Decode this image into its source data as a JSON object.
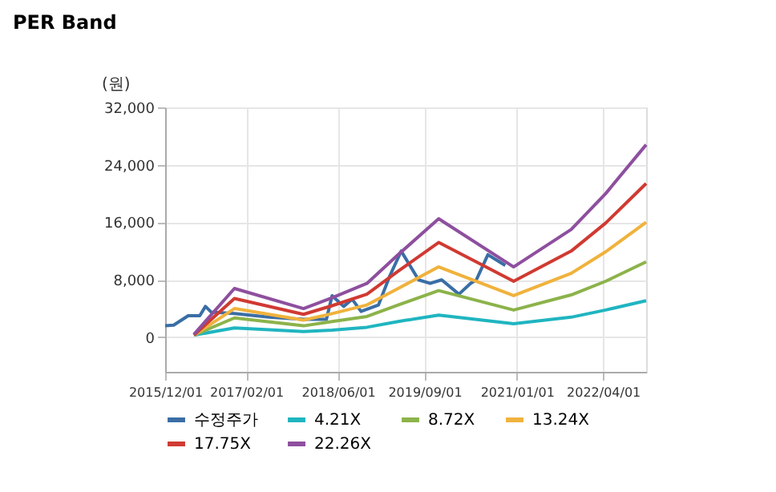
{
  "chart_data": {
    "type": "line",
    "title": "PER Band",
    "ylabel": "(원)",
    "xlim": [
      "2015-12-01",
      "2022-11-15"
    ],
    "ylim": [
      -4800,
      32000
    ],
    "xticks": [
      {
        "value": "2015-12-01",
        "label": "2015/12/01"
      },
      {
        "value": "2017-02-01",
        "label": "2017/02/01"
      },
      {
        "value": "2018-06-01",
        "label": "2018/06/01"
      },
      {
        "value": "2019-09-01",
        "label": "2019/09/01"
      },
      {
        "value": "2021-01-01",
        "label": "2021/01/01"
      },
      {
        "value": "2022-04-01",
        "label": "2022/04/01"
      }
    ],
    "yticks": [
      {
        "value": 0,
        "label": "0"
      },
      {
        "value": 8000,
        "label": "8,000"
      },
      {
        "value": 16000,
        "label": "16,000"
      },
      {
        "value": 24000,
        "label": "24,000"
      },
      {
        "value": 32000,
        "label": "32,000"
      }
    ],
    "grid": true,
    "legend": "bottom",
    "marker": "none",
    "line_style": "solid",
    "series": [
      {
        "name": "수정주가",
        "color": "#3a6ea5",
        "x": [
          "2015-12-01",
          "2016-01-15",
          "2016-04-01",
          "2016-06-01",
          "2016-07-01",
          "2016-08-01",
          "2016-12-01",
          "2017-06-01",
          "2017-12-01",
          "2018-04-01",
          "2018-05-01",
          "2018-07-01",
          "2018-08-15",
          "2018-10-01",
          "2019-01-01",
          "2019-03-01",
          "2019-05-01",
          "2019-08-01",
          "2019-10-01",
          "2019-12-01",
          "2020-03-01",
          "2020-05-01",
          "2020-06-01",
          "2020-08-01",
          "2020-10-01",
          "2020-11-01"
        ],
        "values": [
          1600,
          1700,
          3000,
          3000,
          4300,
          3500,
          3300,
          2800,
          2500,
          2500,
          5800,
          4300,
          5300,
          3600,
          4500,
          8500,
          12000,
          8000,
          7500,
          8000,
          6000,
          7500,
          8000,
          11500,
          10500,
          10000
        ]
      },
      {
        "name": "4.21X",
        "color": "#1fb5c0",
        "x": [
          "2016-05-01",
          "2016-12-01",
          "2017-12-01",
          "2018-05-01",
          "2018-11-01",
          "2019-04-15",
          "2019-11-15",
          "2020-12-15",
          "2021-10-15",
          "2022-04-15",
          "2022-11-15"
        ],
        "values": [
          300,
          1300,
          800,
          1000,
          1400,
          2200,
          3100,
          1900,
          2800,
          3800,
          5100
        ]
      },
      {
        "name": "8.72X",
        "color": "#8cb34a",
        "x": [
          "2016-05-01",
          "2016-12-01",
          "2017-12-01",
          "2018-05-01",
          "2018-11-01",
          "2019-04-15",
          "2019-11-15",
          "2020-12-15",
          "2021-10-15",
          "2022-04-15",
          "2022-11-15"
        ],
        "values": [
          300,
          2700,
          1600,
          2200,
          2900,
          4500,
          6500,
          3800,
          5900,
          7800,
          10500
        ]
      },
      {
        "name": "13.24X",
        "color": "#f0b23c",
        "x": [
          "2016-05-01",
          "2016-12-01",
          "2017-12-01",
          "2018-05-01",
          "2018-11-01",
          "2019-04-15",
          "2019-11-15",
          "2020-12-15",
          "2021-10-15",
          "2022-04-15",
          "2022-11-15"
        ],
        "values": [
          300,
          4000,
          2400,
          3300,
          4500,
          6800,
          9800,
          5800,
          8900,
          11900,
          16000
        ]
      },
      {
        "name": "17.75X",
        "color": "#d03a32",
        "x": [
          "2016-05-01",
          "2016-12-01",
          "2017-12-01",
          "2018-05-01",
          "2018-11-01",
          "2019-04-15",
          "2019-11-15",
          "2020-12-15",
          "2021-10-15",
          "2022-04-15",
          "2022-11-15"
        ],
        "values": [
          300,
          5400,
          3200,
          4400,
          6000,
          9200,
          13200,
          7800,
          12000,
          15900,
          21400
        ]
      },
      {
        "name": "22.26X",
        "color": "#8e4f9e",
        "x": [
          "2016-05-01",
          "2016-12-01",
          "2017-12-01",
          "2018-05-01",
          "2018-11-01",
          "2019-04-15",
          "2019-11-15",
          "2020-12-15",
          "2021-10-15",
          "2022-04-15",
          "2022-11-15"
        ],
        "values": [
          400,
          6800,
          4000,
          5500,
          7500,
          11500,
          16500,
          9800,
          15000,
          20000,
          26800
        ]
      }
    ]
  }
}
